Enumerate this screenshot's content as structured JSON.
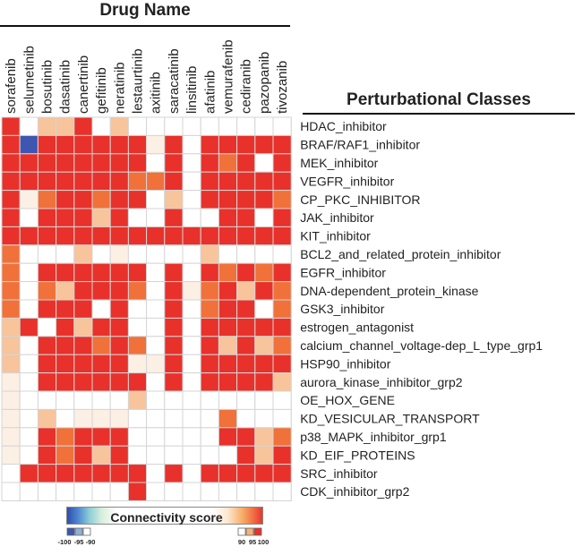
{
  "header": {
    "drug_title": "Drug Name",
    "class_title": "Perturbational Classes"
  },
  "legend": {
    "title": "Connectivity score",
    "ticks": [
      "-100",
      "-95",
      "-90",
      "90",
      "95",
      "100"
    ]
  },
  "colors": {
    "strong_pos": "#e8312b",
    "mid_pos": "#f0713a",
    "light_pos": "#f7c49c",
    "faint_pos": "#fcefe4",
    "strong_neg": "#3d56b0",
    "empty": "#ffffff",
    "grid": "#d5d5d5"
  },
  "chart_data": {
    "type": "heatmap",
    "title": "",
    "xlabel": "Drug Name",
    "ylabel": "Perturbational Classes",
    "columns": [
      "sorafenib",
      "selumetinib",
      "bosutinib",
      "dasatinib",
      "canertinib",
      "gefitinib",
      "neratinib",
      "lestaurtinib",
      "axitinib",
      "saracatinib",
      "linsitinib",
      "afatinib",
      "vemurafenib",
      "cediranib",
      "pazopanib",
      "tivozanib"
    ],
    "rows": [
      "HDAC_inhibitor",
      "BRAF/RAF1_inhibitor",
      "MEK_inhibitor",
      "VEGFR_inhibitor",
      "CP_PKC_INHIBITOR",
      "JAK_inhibitor",
      "KIT_inhibitor",
      "BCL2_and_related_protein_inhibitor",
      "EGFR_inhibitor",
      "DNA-dependent_protein_kinase",
      "GSK3_inhibitor",
      "estrogen_antagonist",
      "calcium_channel_voltage-dep_L_type_grp1",
      "HSP90_inhibitor",
      "aurora_kinase_inhibitor_grp2",
      "OE_HOX_GENE",
      "KD_VESICULAR_TRANSPORT",
      "p38_MAPK_inhibitor_grp1",
      "KD_EIF_PROTEINS",
      "SRC_inhibitor",
      "CDK_inhibitor_grp2"
    ],
    "value_range": [
      -100,
      100
    ],
    "legend_position": "bottom-left",
    "values": [
      [
        100,
        0,
        93,
        93,
        100,
        0,
        93,
        0,
        0,
        0,
        0,
        0,
        0,
        0,
        0,
        0
      ],
      [
        100,
        -100,
        100,
        100,
        100,
        100,
        100,
        100,
        92,
        100,
        0,
        100,
        100,
        100,
        100,
        100
      ],
      [
        100,
        100,
        100,
        100,
        100,
        100,
        100,
        100,
        0,
        100,
        0,
        100,
        97,
        100,
        0,
        100
      ],
      [
        100,
        100,
        100,
        100,
        100,
        100,
        100,
        97,
        97,
        100,
        0,
        100,
        100,
        100,
        100,
        100
      ],
      [
        100,
        92,
        97,
        100,
        100,
        97,
        100,
        100,
        0,
        94,
        0,
        100,
        100,
        100,
        100,
        97
      ],
      [
        100,
        0,
        100,
        100,
        100,
        93,
        100,
        0,
        0,
        100,
        0,
        0,
        100,
        100,
        0,
        100
      ],
      [
        100,
        100,
        100,
        100,
        100,
        100,
        100,
        100,
        100,
        100,
        100,
        100,
        100,
        100,
        100,
        100
      ],
      [
        97,
        0,
        0,
        0,
        94,
        0,
        92,
        0,
        0,
        0,
        0,
        94,
        0,
        0,
        0,
        0
      ],
      [
        97,
        0,
        100,
        100,
        100,
        100,
        100,
        100,
        0,
        100,
        0,
        100,
        97,
        100,
        97,
        100
      ],
      [
        97,
        0,
        96,
        93,
        100,
        100,
        100,
        97,
        0,
        100,
        92,
        97,
        100,
        93,
        100,
        97
      ],
      [
        97,
        0,
        100,
        100,
        100,
        0,
        100,
        0,
        0,
        100,
        0,
        97,
        100,
        100,
        0,
        97
      ],
      [
        95,
        100,
        0,
        100,
        93,
        100,
        100,
        0,
        0,
        100,
        0,
        100,
        100,
        100,
        100,
        100
      ],
      [
        93,
        0,
        100,
        100,
        100,
        96,
        100,
        97,
        0,
        100,
        0,
        100,
        93,
        100,
        94,
        97
      ],
      [
        93,
        0,
        100,
        100,
        100,
        100,
        100,
        92,
        92,
        100,
        0,
        100,
        100,
        100,
        100,
        100
      ],
      [
        92,
        0,
        100,
        100,
        100,
        100,
        100,
        100,
        0,
        100,
        0,
        100,
        100,
        100,
        100,
        94
      ],
      [
        92,
        0,
        0,
        0,
        0,
        0,
        0,
        94,
        0,
        0,
        0,
        0,
        0,
        0,
        0,
        0
      ],
      [
        91,
        0,
        94,
        0,
        92,
        92,
        92,
        0,
        0,
        0,
        0,
        0,
        97,
        0,
        0,
        0
      ],
      [
        91,
        0,
        100,
        97,
        100,
        100,
        100,
        0,
        0,
        0,
        0,
        0,
        100,
        100,
        94,
        96
      ],
      [
        90,
        0,
        100,
        96,
        100,
        93,
        100,
        0,
        0,
        0,
        0,
        0,
        0,
        100,
        94,
        100
      ],
      [
        0,
        100,
        100,
        100,
        100,
        100,
        100,
        100,
        0,
        100,
        0,
        100,
        100,
        100,
        100,
        100
      ],
      [
        0,
        0,
        0,
        0,
        0,
        0,
        0,
        100,
        0,
        0,
        0,
        0,
        0,
        0,
        0,
        0
      ]
    ]
  }
}
